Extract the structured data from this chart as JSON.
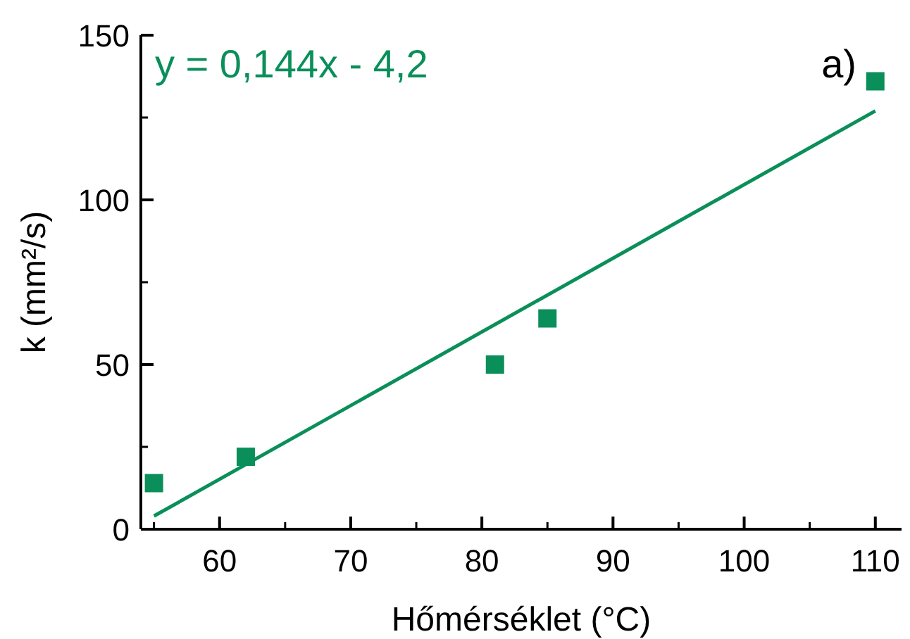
{
  "chart_data": {
    "type": "scatter",
    "xlabel": "Hőmérséklet (°C)",
    "ylabel": "k (mm²/s)",
    "annotations": [
      "y = 0,144x - 4,2",
      "a)"
    ],
    "xlim": [
      54,
      112
    ],
    "ylim": [
      0,
      150
    ],
    "xticks": [
      60,
      70,
      80,
      90,
      100,
      110
    ],
    "yticks": [
      0,
      50,
      100,
      150
    ],
    "grid": false,
    "series": [
      {
        "marker": "square",
        "color": "#0a8f5a",
        "x": [
          55,
          62,
          81,
          85,
          110
        ],
        "values": [
          14,
          22,
          50,
          64,
          136
        ]
      },
      {
        "type": "line",
        "color": "#0a8f5a",
        "x": [
          55,
          110
        ],
        "values": [
          4,
          127
        ],
        "line_style": "solid"
      }
    ]
  }
}
